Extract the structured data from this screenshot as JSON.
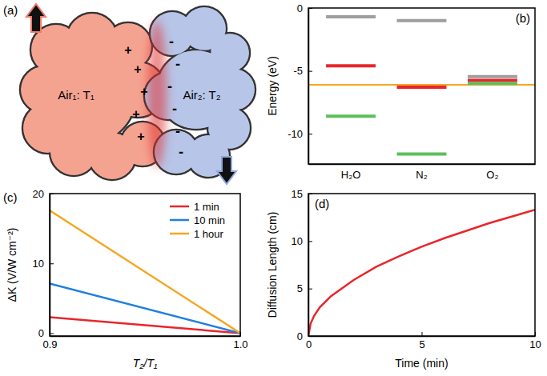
{
  "diagram": {
    "panel_label": "(a)",
    "left": {
      "label": "Air₁: T₁",
      "charge": "+",
      "color": "#f5a391"
    },
    "right": {
      "label": "Air₂: T₂",
      "charge": "-",
      "color": "#b7c5e8"
    }
  },
  "chart_data": [
    {
      "type": "level",
      "panel_label": "(b)",
      "y_label": "Energy (eV)",
      "categories": [
        "H₂O",
        "N₂",
        "O₂"
      ],
      "series": [
        {
          "color": "#9e9e9e",
          "values": [
            -0.7,
            -1.0,
            -5.45
          ]
        },
        {
          "color": "#e8262b",
          "values": [
            -4.6,
            -6.3,
            -5.75
          ]
        },
        {
          "color": "#5cbf5c",
          "values": [
            -8.6,
            -11.6,
            -6.0
          ]
        }
      ],
      "reference_line": {
        "value": -6.1,
        "color": "#f5a623"
      },
      "ylim": [
        -12.4,
        0
      ],
      "yticks": [
        0,
        -5,
        -10
      ]
    },
    {
      "type": "line",
      "panel_label": "(c)",
      "x_label": "T₂/T₁",
      "y_label": "ΔK (V/W cm⁻²)",
      "x": [
        0.9,
        1.0
      ],
      "series": [
        {
          "name": "1 min",
          "color": "#e8262b",
          "values": [
            2.3,
            0
          ]
        },
        {
          "name": "10 min",
          "color": "#1f7fe0",
          "values": [
            7.1,
            0
          ]
        },
        {
          "name": "1 hour",
          "color": "#f5a623",
          "values": [
            17.6,
            0
          ]
        }
      ],
      "xlim": [
        0.9,
        1.0
      ],
      "xticks": [
        0.9,
        {
          "value": 1.0,
          "label": "1.0"
        }
      ],
      "ylim": [
        -0.4,
        20
      ],
      "yticks": [
        0,
        10,
        20
      ],
      "legend": "top-right"
    },
    {
      "type": "line",
      "panel_label": "(d)",
      "x_label": "Time (min)",
      "y_label": "Diffusion Length (cm)",
      "x": [
        0,
        0.1,
        0.25,
        0.5,
        1,
        2,
        3,
        4,
        5,
        6,
        7,
        8,
        9,
        10
      ],
      "series": [
        {
          "color": "#e8262b",
          "values": [
            0,
            1.3,
            2.1,
            3.0,
            4.2,
            5.9,
            7.3,
            8.4,
            9.4,
            10.3,
            11.1,
            11.9,
            12.6,
            13.3
          ]
        }
      ],
      "xlim": [
        0,
        10
      ],
      "xticks": [
        0,
        5,
        10
      ],
      "ylim": [
        0,
        15
      ],
      "yticks": [
        0,
        5,
        10,
        15
      ]
    }
  ]
}
